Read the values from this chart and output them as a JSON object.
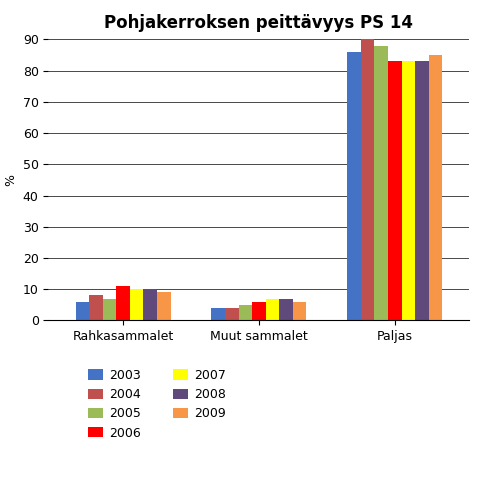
{
  "title": "Pohjakerroksen peittävyys PS 14",
  "ylabel": "%",
  "categories": [
    "Rahkasammalet",
    "Muut sammalet",
    "Paljas"
  ],
  "years": [
    "2003",
    "2004",
    "2005",
    "2006",
    "2007",
    "2008",
    "2009"
  ],
  "colors": [
    "#4472C4",
    "#C0504D",
    "#9BBB59",
    "#FF0000",
    "#FFFF00",
    "#604A7B",
    "#F79646"
  ],
  "values": {
    "Rahkasammalet": [
      6,
      8,
      7,
      11,
      10,
      10,
      9
    ],
    "Muut sammalet": [
      4,
      4,
      5,
      6,
      7,
      7,
      6
    ],
    "Paljas": [
      86,
      90,
      88,
      83,
      83,
      83,
      85
    ]
  },
  "ylim": [
    0,
    90
  ],
  "yticks": [
    0,
    10,
    20,
    30,
    40,
    50,
    60,
    70,
    80,
    90
  ],
  "background_color": "#FFFFFF",
  "grid_color": "#000000",
  "bar_width": 0.1,
  "title_fontsize": 12,
  "axis_fontsize": 9,
  "legend_fontsize": 9
}
